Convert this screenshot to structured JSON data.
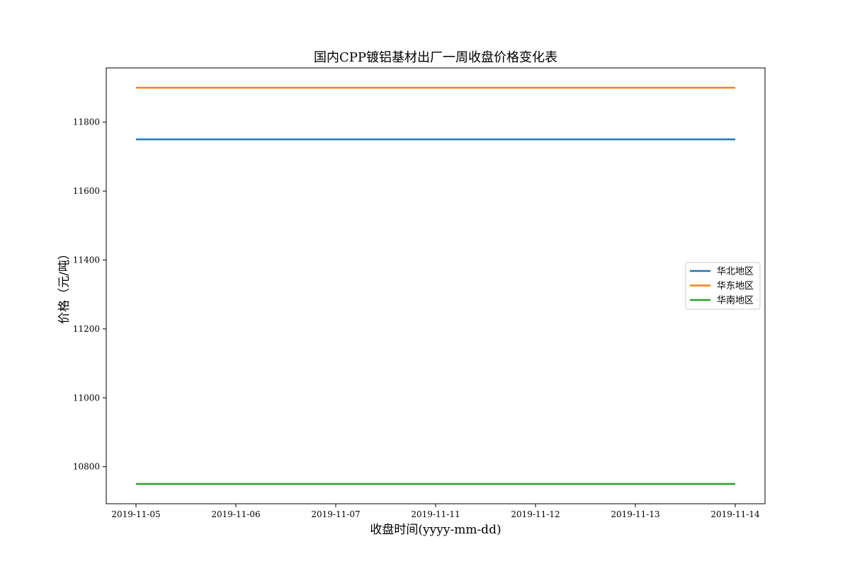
{
  "chart_data": {
    "type": "line",
    "title": "国内CPP镀铝基材出厂一周收盘价格变化表",
    "xlabel": "收盘时间(yyyy-mm-dd)",
    "ylabel": "价格（元/吨）",
    "categories": [
      "2019-11-05",
      "2019-11-06",
      "2019-11-07",
      "2019-11-11",
      "2019-11-12",
      "2019-11-13",
      "2019-11-14"
    ],
    "yticks": [
      10800,
      11000,
      11200,
      11400,
      11600,
      11800
    ],
    "ylim": [
      10692.5,
      11957.5
    ],
    "grid": false,
    "legend_position": "center-right",
    "series": [
      {
        "name": "华北地区",
        "color": "#1f77b4",
        "values": [
          11750,
          11750,
          11750,
          11750,
          11750,
          11750,
          11750
        ]
      },
      {
        "name": "华东地区",
        "color": "#ff7f0e",
        "values": [
          11900,
          11900,
          11900,
          11900,
          11900,
          11900,
          11900
        ]
      },
      {
        "name": "华南地区",
        "color": "#2ca02c",
        "values": [
          10750,
          10750,
          10750,
          10750,
          10750,
          10750,
          10750
        ]
      }
    ]
  }
}
